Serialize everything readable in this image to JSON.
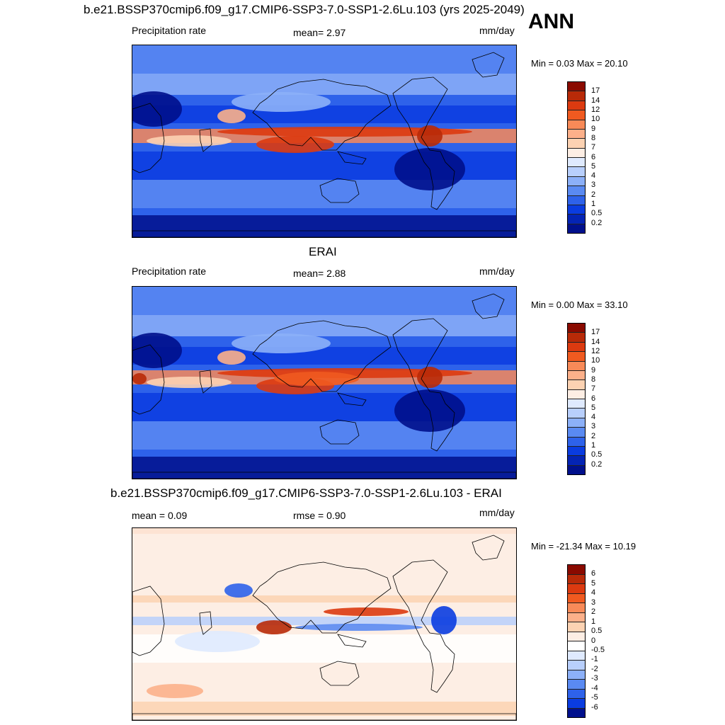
{
  "season": "ANN",
  "panels": [
    {
      "title": "b.e21.BSSP370cmip6.f09_g17.CMIP6-SSP3-7.0-SSP1-2.6Lu.103 (yrs 2025-2049)",
      "left_label": "Precipitation rate",
      "center_label": "mean=   2.97",
      "units": "mm/day",
      "minmax": "Min =   0.03 Max =  20.10",
      "style": "model"
    },
    {
      "title": "ERAI",
      "left_label": "Precipitation rate",
      "center_label": "mean=   2.88",
      "units": "mm/day",
      "minmax": "Min =   0.00 Max =  33.10",
      "style": "obs"
    },
    {
      "title": "b.e21.BSSP370cmip6.f09_g17.CMIP6-SSP3-7.0-SSP1-2.6Lu.103 - ERAI",
      "left_label": "mean =   0.09",
      "center_label": "rmse =   0.90",
      "units": "mm/day",
      "minmax": "Min = -21.34 Max =  10.19",
      "style": "diff"
    }
  ],
  "precip_colorbar": {
    "levels": [
      "17",
      "14",
      "12",
      "10",
      "9",
      "8",
      "7",
      "6",
      "5",
      "4",
      "3",
      "2",
      "1",
      "0.5",
      "0.2"
    ],
    "colors": [
      "#8a0a00",
      "#b82a08",
      "#dc3a10",
      "#f05a20",
      "#f88a58",
      "#fcb08a",
      "#fcd2b2",
      "#fdeee4",
      "#dfeafe",
      "#b8cffc",
      "#8cb0f8",
      "#5a8af2",
      "#2e62ea",
      "#0a3ce0",
      "#0424b4",
      "#00108c"
    ]
  },
  "diff_colorbar": {
    "levels": [
      "6",
      "5",
      "4",
      "3",
      "2",
      "1",
      "0.5",
      "0",
      "-0.5",
      "-1",
      "-2",
      "-3",
      "-4",
      "-5",
      "-6"
    ],
    "colors": [
      "#8a0a00",
      "#b82a08",
      "#dc3a10",
      "#f05a20",
      "#f88a58",
      "#fcb08a",
      "#fcd2b2",
      "#fdeee4",
      "#ffffff",
      "#dfeafe",
      "#b8cffc",
      "#8cb0f8",
      "#5a8af2",
      "#2e62ea",
      "#0a3ce0",
      "#00108c"
    ]
  }
}
